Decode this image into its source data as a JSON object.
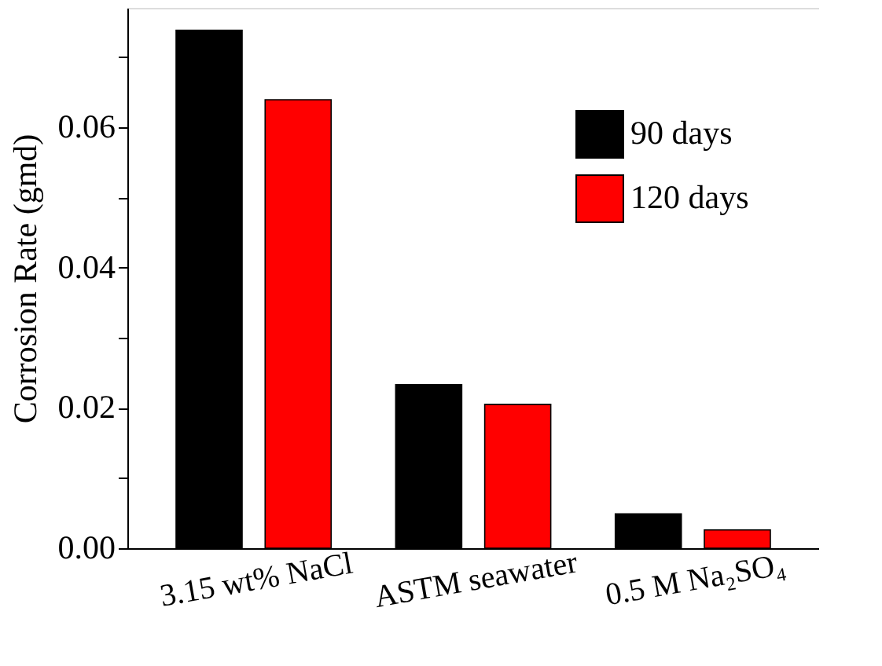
{
  "chart_data": {
    "type": "bar",
    "ylabel": "Corrosion Rate (gmd)",
    "categories": [
      "3.15 wt% NaCl",
      "ASTM seawater",
      "0.5 M Na₂SO₄"
    ],
    "series": [
      {
        "name": "90 days",
        "color": "#000000",
        "values": [
          0.0738,
          0.0233,
          0.0049
        ]
      },
      {
        "name": "120 days",
        "color": "#ff0000",
        "values": [
          0.0639,
          0.0205,
          0.0026
        ]
      }
    ],
    "ylim": [
      0,
      0.077
    ],
    "yticks": [
      {
        "value": 0,
        "label": "0.00"
      },
      {
        "value": 0.01,
        "label": null
      },
      0.02,
      {
        "value": 0.03,
        "label": null
      },
      0.04,
      {
        "value": 0.05,
        "label": null
      },
      0.06,
      {
        "value": 0.07,
        "label": null
      }
    ],
    "legend": "top right",
    "grid": false
  }
}
